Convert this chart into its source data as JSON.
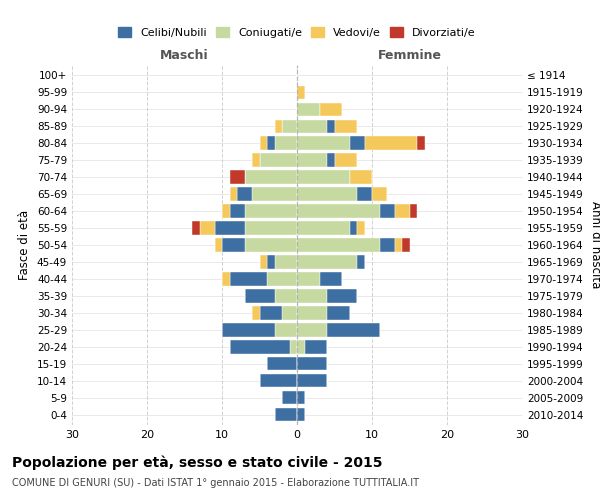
{
  "age_groups": [
    "0-4",
    "5-9",
    "10-14",
    "15-19",
    "20-24",
    "25-29",
    "30-34",
    "35-39",
    "40-44",
    "45-49",
    "50-54",
    "55-59",
    "60-64",
    "65-69",
    "70-74",
    "75-79",
    "80-84",
    "85-89",
    "90-94",
    "95-99",
    "100+"
  ],
  "birth_years": [
    "2010-2014",
    "2005-2009",
    "2000-2004",
    "1995-1999",
    "1990-1994",
    "1985-1989",
    "1980-1984",
    "1975-1979",
    "1970-1974",
    "1965-1969",
    "1960-1964",
    "1955-1959",
    "1950-1954",
    "1945-1949",
    "1940-1944",
    "1935-1939",
    "1930-1934",
    "1925-1929",
    "1920-1924",
    "1915-1919",
    "≤ 1914"
  ],
  "male_celibi": [
    3,
    2,
    5,
    4,
    8,
    7,
    3,
    4,
    5,
    1,
    3,
    4,
    2,
    2,
    0,
    0,
    1,
    0,
    0,
    0,
    0
  ],
  "male_coniugati": [
    0,
    0,
    0,
    0,
    1,
    3,
    2,
    3,
    4,
    3,
    7,
    7,
    7,
    6,
    7,
    5,
    3,
    2,
    0,
    0,
    0
  ],
  "male_vedovi": [
    0,
    0,
    0,
    0,
    0,
    0,
    1,
    0,
    1,
    1,
    1,
    2,
    1,
    1,
    0,
    1,
    1,
    1,
    0,
    0,
    0
  ],
  "male_divorziati": [
    0,
    0,
    0,
    0,
    0,
    0,
    0,
    0,
    0,
    0,
    0,
    1,
    0,
    0,
    2,
    0,
    0,
    0,
    0,
    0,
    0
  ],
  "female_celibi": [
    1,
    1,
    4,
    4,
    3,
    7,
    3,
    4,
    3,
    1,
    2,
    1,
    2,
    2,
    0,
    1,
    2,
    1,
    0,
    0,
    0
  ],
  "female_coniugati": [
    0,
    0,
    0,
    0,
    1,
    4,
    4,
    4,
    3,
    8,
    11,
    7,
    11,
    8,
    7,
    4,
    7,
    4,
    3,
    0,
    0
  ],
  "female_vedovi": [
    0,
    0,
    0,
    0,
    0,
    0,
    0,
    0,
    0,
    0,
    1,
    1,
    2,
    2,
    3,
    3,
    7,
    3,
    3,
    1,
    0
  ],
  "female_divorziati": [
    0,
    0,
    0,
    0,
    0,
    0,
    0,
    0,
    0,
    0,
    1,
    0,
    1,
    0,
    0,
    0,
    1,
    0,
    0,
    0,
    0
  ],
  "color_celibi": "#3e6fa3",
  "color_coniugati": "#c5d9a0",
  "color_vedovi": "#f5c85c",
  "color_divorziati": "#c0392b",
  "title_main": "Popolazione per età, sesso e stato civile - 2015",
  "title_sub": "COMUNE DI GENURI (SU) - Dati ISTAT 1° gennaio 2015 - Elaborazione TUTTITALIA.IT",
  "xlabel_left": "Maschi",
  "xlabel_right": "Femmine",
  "ylabel_left": "Fasce di età",
  "ylabel_right": "Anni di nascita",
  "xlim": 30,
  "background_color": "#ffffff",
  "grid_color": "#cccccc"
}
